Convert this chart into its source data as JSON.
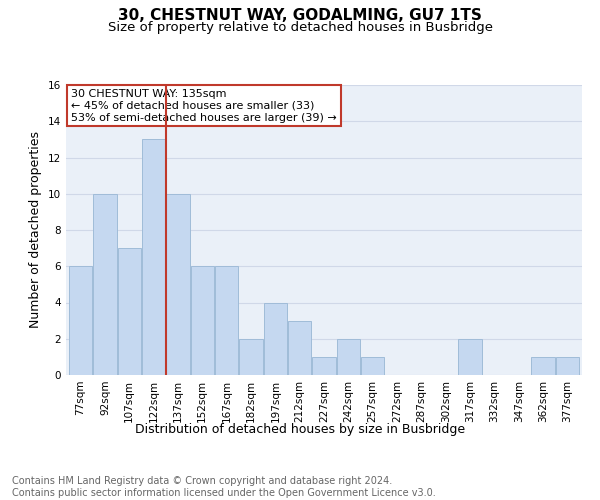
{
  "title": "30, CHESTNUT WAY, GODALMING, GU7 1TS",
  "subtitle": "Size of property relative to detached houses in Busbridge",
  "xlabel": "Distribution of detached houses by size in Busbridge",
  "ylabel": "Number of detached properties",
  "categories": [
    "77sqm",
    "92sqm",
    "107sqm",
    "122sqm",
    "137sqm",
    "152sqm",
    "167sqm",
    "182sqm",
    "197sqm",
    "212sqm",
    "227sqm",
    "242sqm",
    "257sqm",
    "272sqm",
    "287sqm",
    "302sqm",
    "317sqm",
    "332sqm",
    "347sqm",
    "362sqm",
    "377sqm"
  ],
  "values": [
    6,
    10,
    7,
    13,
    10,
    6,
    6,
    2,
    4,
    3,
    1,
    2,
    1,
    0,
    0,
    0,
    2,
    0,
    0,
    1,
    1
  ],
  "bar_color": "#c5d8f0",
  "bar_edge_color": "#a0bcd8",
  "vline_index": 3.5,
  "vline_color": "#c0392b",
  "annotation_line1": "30 CHESTNUT WAY: 135sqm",
  "annotation_line2": "← 45% of detached houses are smaller (33)",
  "annotation_line3": "53% of semi-detached houses are larger (39) →",
  "annotation_box_color": "#c0392b",
  "ylim": [
    0,
    16
  ],
  "yticks": [
    0,
    2,
    4,
    6,
    8,
    10,
    12,
    14,
    16
  ],
  "grid_color": "#d0d8e8",
  "background_color": "#eaf0f8",
  "footer_line1": "Contains HM Land Registry data © Crown copyright and database right 2024.",
  "footer_line2": "Contains public sector information licensed under the Open Government Licence v3.0.",
  "title_fontsize": 11,
  "subtitle_fontsize": 9.5,
  "xlabel_fontsize": 9,
  "ylabel_fontsize": 9,
  "tick_fontsize": 7.5,
  "annotation_fontsize": 8,
  "footer_fontsize": 7
}
